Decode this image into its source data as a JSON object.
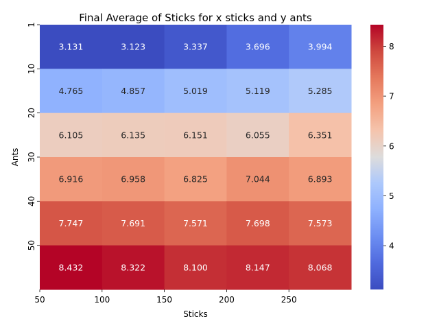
{
  "chart_data": {
    "type": "heatmap",
    "title": "Final Average of Sticks for x sticks and y ants",
    "xlabel": "Sticks",
    "ylabel": "Ants",
    "x_tick_labels": [
      "50",
      "100",
      "150",
      "200",
      "250"
    ],
    "y_tick_labels": [
      "1",
      "10",
      "20",
      "30",
      "40",
      "50"
    ],
    "values": [
      [
        3.131,
        3.123,
        3.337,
        3.696,
        3.994
      ],
      [
        4.765,
        4.857,
        5.019,
        5.119,
        5.285
      ],
      [
        6.105,
        6.135,
        6.151,
        6.055,
        6.351
      ],
      [
        6.916,
        6.958,
        6.825,
        7.044,
        6.893
      ],
      [
        7.747,
        7.691,
        7.571,
        7.698,
        7.573
      ],
      [
        8.432,
        8.322,
        8.1,
        8.147,
        8.068
      ]
    ],
    "value_labels": [
      [
        "3.131",
        "3.123",
        "3.337",
        "3.696",
        "3.994"
      ],
      [
        "4.765",
        "4.857",
        "5.019",
        "5.119",
        "5.285"
      ],
      [
        "6.105",
        "6.135",
        "6.151",
        "6.055",
        "6.351"
      ],
      [
        "6.916",
        "6.958",
        "6.825",
        "7.044",
        "6.893"
      ],
      [
        "7.747",
        "7.691",
        "7.571",
        "7.698",
        "7.573"
      ],
      [
        "8.432",
        "8.322",
        "8.100",
        "8.147",
        "8.068"
      ]
    ],
    "colormap": "coolwarm",
    "vmin": 3.123,
    "vmax": 8.432,
    "colorbar_ticks": [
      4,
      5,
      6,
      7,
      8
    ],
    "colorbar_tick_labels": [
      "4",
      "5",
      "6",
      "7",
      "8"
    ],
    "colorbar_position": "right",
    "grid": false
  }
}
